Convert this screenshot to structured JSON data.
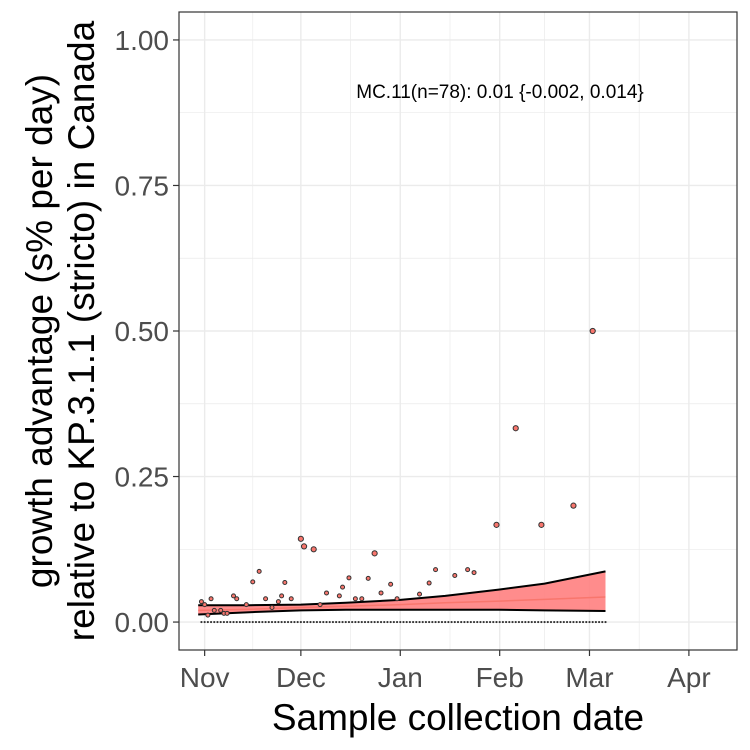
{
  "chart_data": {
    "type": "scatter",
    "title": "",
    "xlabel": "Sample collection date",
    "ylabel_lines": [
      "growth advantage (s% per day)",
      "relative to KP.3.1.1 (stricto) in Canada"
    ],
    "x_ticks": [
      {
        "label": "Nov",
        "date": "2024-11-01"
      },
      {
        "label": "Dec",
        "date": "2024-12-01"
      },
      {
        "label": "Jan",
        "date": "2025-01-01"
      },
      {
        "label": "Feb",
        "date": "2025-02-01"
      },
      {
        "label": "Mar",
        "date": "2025-03-01"
      },
      {
        "label": "Apr",
        "date": "2025-04-01"
      }
    ],
    "xlim": [
      "2024-10-24",
      "2025-04-16"
    ],
    "y_ticks": [
      "0.00",
      "0.25",
      "0.50",
      "0.75",
      "1.00"
    ],
    "ylim": [
      -0.048,
      1.048
    ],
    "grid": true,
    "annotation": "MC.11(n=78): 0.01 {-0.002, 0.014}",
    "colors": {
      "ribbon": "#ff7f7f",
      "fit_line": "#f8766d",
      "ribbon_border": "#000000",
      "point_fill": "#f8766d",
      "grid": "#ebebeb",
      "panel_border": "#333333"
    },
    "fit": {
      "x": [
        "2024-10-30",
        "2024-11-15",
        "2024-12-01",
        "2024-12-15",
        "2025-01-01",
        "2025-01-15",
        "2025-02-01",
        "2025-02-15",
        "2025-03-06"
      ],
      "y": [
        0.02,
        0.022,
        0.025,
        0.027,
        0.03,
        0.033,
        0.036,
        0.039,
        0.043
      ],
      "lower": [
        0.013,
        0.017,
        0.02,
        0.021,
        0.021,
        0.021,
        0.021,
        0.02,
        0.019
      ],
      "upper": [
        0.029,
        0.029,
        0.03,
        0.033,
        0.038,
        0.045,
        0.056,
        0.066,
        0.087
      ]
    },
    "points": [
      {
        "x": "2024-10-31",
        "y": 0.035
      },
      {
        "x": "2024-11-01",
        "y": 0.03
      },
      {
        "x": "2024-11-02",
        "y": 0.012
      },
      {
        "x": "2024-11-03",
        "y": 0.04
      },
      {
        "x": "2024-11-04",
        "y": 0.02
      },
      {
        "x": "2024-11-06",
        "y": 0.02
      },
      {
        "x": "2024-11-07",
        "y": 0.015
      },
      {
        "x": "2024-11-08",
        "y": 0.015
      },
      {
        "x": "2024-11-10",
        "y": 0.045
      },
      {
        "x": "2024-11-11",
        "y": 0.04
      },
      {
        "x": "2024-11-14",
        "y": 0.03
      },
      {
        "x": "2024-11-16",
        "y": 0.069
      },
      {
        "x": "2024-11-18",
        "y": 0.087
      },
      {
        "x": "2024-11-20",
        "y": 0.04
      },
      {
        "x": "2024-11-22",
        "y": 0.025
      },
      {
        "x": "2024-11-24",
        "y": 0.035
      },
      {
        "x": "2024-11-25",
        "y": 0.045
      },
      {
        "x": "2024-11-26",
        "y": 0.068
      },
      {
        "x": "2024-11-28",
        "y": 0.04
      },
      {
        "x": "2024-12-01",
        "y": 0.143
      },
      {
        "x": "2024-12-02",
        "y": 0.13
      },
      {
        "x": "2024-12-05",
        "y": 0.125
      },
      {
        "x": "2024-12-07",
        "y": 0.03
      },
      {
        "x": "2024-12-09",
        "y": 0.05
      },
      {
        "x": "2024-12-13",
        "y": 0.045
      },
      {
        "x": "2024-12-14",
        "y": 0.06
      },
      {
        "x": "2024-12-16",
        "y": 0.076
      },
      {
        "x": "2024-12-18",
        "y": 0.04
      },
      {
        "x": "2024-12-20",
        "y": 0.04
      },
      {
        "x": "2024-12-22",
        "y": 0.075
      },
      {
        "x": "2024-12-24",
        "y": 0.118
      },
      {
        "x": "2024-12-26",
        "y": 0.05
      },
      {
        "x": "2024-12-29",
        "y": 0.065
      },
      {
        "x": "2024-12-31",
        "y": 0.04
      },
      {
        "x": "2025-01-07",
        "y": 0.048
      },
      {
        "x": "2025-01-10",
        "y": 0.067
      },
      {
        "x": "2025-01-12",
        "y": 0.09
      },
      {
        "x": "2025-01-18",
        "y": 0.08
      },
      {
        "x": "2025-01-22",
        "y": 0.09
      },
      {
        "x": "2025-01-24",
        "y": 0.085
      },
      {
        "x": "2025-01-31",
        "y": 0.167
      },
      {
        "x": "2025-02-06",
        "y": 0.333
      },
      {
        "x": "2025-02-14",
        "y": 0.167
      },
      {
        "x": "2025-02-24",
        "y": 0.2
      },
      {
        "x": "2025-03-02",
        "y": 0.5
      }
    ]
  }
}
